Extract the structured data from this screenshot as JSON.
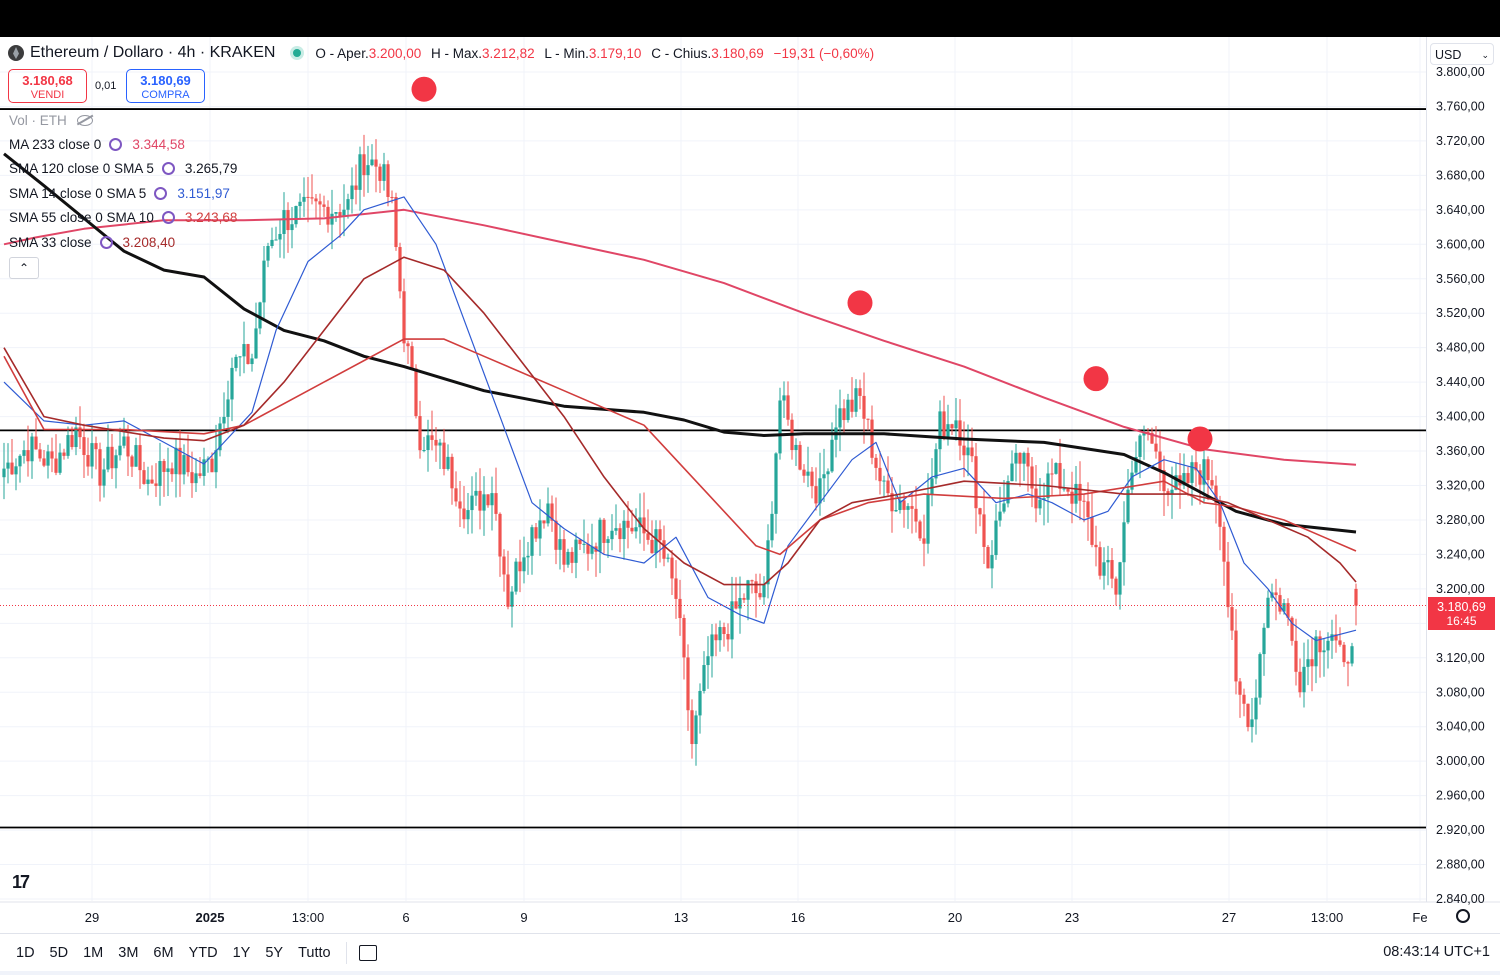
{
  "header": {
    "title": "Ethereum / Dollaro · 4h · KRAKEN",
    "open_label": "O - Aper.",
    "open": "3.200,00",
    "high_label": "H - Max.",
    "high": "3.212,82",
    "low_label": "L - Min.",
    "low": "3.179,10",
    "close_label": "C - Chius.",
    "close": "3.180,69",
    "change": "−19,31 (−0,60%)"
  },
  "trade": {
    "sell_price": "3.180,68",
    "sell_label": "VENDI",
    "spread": "0,01",
    "buy_price": "3.180,69",
    "buy_label": "COMPRA"
  },
  "volume": {
    "label": "Vol · ETH"
  },
  "indicators": [
    {
      "name": "MA 233 close 0",
      "value": "3.344,58",
      "color": "#e04666"
    },
    {
      "name": "SMA 120 close 0 SMA 5",
      "value": "3.265,79",
      "color": "#131722"
    },
    {
      "name": "SMA 14 close 0 SMA 5",
      "value": "3.151,97",
      "color": "#2f5bd3"
    },
    {
      "name": "SMA 55 close 0 SMA 10",
      "value": "3.243,68",
      "color": "#d13d3d"
    },
    {
      "name": "SMA 33 close",
      "value": "3.208,40",
      "color": "#a52a2a"
    }
  ],
  "currency": "USD",
  "last_price": {
    "value": "3.180,69",
    "countdown": "16:45"
  },
  "time_axis": [
    "29",
    "2025",
    "13:00",
    "6",
    "9",
    "13",
    "16",
    "20",
    "23",
    "27",
    "13:00",
    "Fe"
  ],
  "range_buttons": [
    "1D",
    "5D",
    "1M",
    "3M",
    "6M",
    "YTD",
    "1Y",
    "5Y",
    "Tutto"
  ],
  "clock": "08:43:14 UTC+1",
  "colors": {
    "up": "#26a69a",
    "down": "#ef5350",
    "marker": "#f23645"
  },
  "chart_data": {
    "type": "candlestick",
    "symbol": "ETH/USD",
    "interval": "4h",
    "ylim": [
      2840,
      3800
    ],
    "yticks": [
      "3.800,00",
      "3.760,00",
      "3.720,00",
      "3.680,00",
      "3.640,00",
      "3.600,00",
      "3.560,00",
      "3.520,00",
      "3.480,00",
      "3.440,00",
      "3.400,00",
      "3.360,00",
      "3.320,00",
      "3.280,00",
      "3.240,00",
      "3.200,00",
      "3.160,00",
      "3.120,00",
      "3.080,00",
      "3.040,00",
      "3.000,00",
      "2.960,00",
      "2.920,00",
      "2.880,00",
      "2.840,00"
    ],
    "horizontal_lines": [
      3757,
      3384,
      2923
    ],
    "close_anchors": [
      [
        0,
        3340
      ],
      [
        6,
        3365
      ],
      [
        12,
        3345
      ],
      [
        18,
        3385
      ],
      [
        24,
        3335
      ],
      [
        30,
        3370
      ],
      [
        36,
        3325
      ],
      [
        42,
        3350
      ],
      [
        48,
        3330
      ],
      [
        52,
        3350
      ],
      [
        57,
        3460
      ],
      [
        62,
        3470
      ],
      [
        66,
        3600
      ],
      [
        70,
        3630
      ],
      [
        78,
        3640
      ],
      [
        86,
        3645
      ],
      [
        90,
        3700
      ],
      [
        94,
        3690
      ],
      [
        97,
        3640
      ],
      [
        100,
        3500
      ],
      [
        104,
        3380
      ],
      [
        110,
        3350
      ],
      [
        116,
        3290
      ],
      [
        122,
        3320
      ],
      [
        126,
        3190
      ],
      [
        130,
        3250
      ],
      [
        136,
        3300
      ],
      [
        140,
        3230
      ],
      [
        146,
        3250
      ],
      [
        152,
        3280
      ],
      [
        158,
        3270
      ],
      [
        164,
        3250
      ],
      [
        168,
        3190
      ],
      [
        172,
        3020
      ],
      [
        176,
        3120
      ],
      [
        180,
        3150
      ],
      [
        186,
        3200
      ],
      [
        190,
        3190
      ],
      [
        194,
        3420
      ],
      [
        198,
        3360
      ],
      [
        204,
        3310
      ],
      [
        208,
        3400
      ],
      [
        214,
        3420
      ],
      [
        220,
        3310
      ],
      [
        226,
        3300
      ],
      [
        230,
        3270
      ],
      [
        234,
        3390
      ],
      [
        238,
        3400
      ],
      [
        242,
        3340
      ],
      [
        246,
        3230
      ],
      [
        250,
        3310
      ],
      [
        254,
        3350
      ],
      [
        258,
        3310
      ],
      [
        262,
        3330
      ],
      [
        266,
        3320
      ],
      [
        270,
        3290
      ],
      [
        274,
        3230
      ],
      [
        278,
        3200
      ],
      [
        282,
        3350
      ],
      [
        286,
        3380
      ],
      [
        290,
        3330
      ],
      [
        294,
        3310
      ],
      [
        298,
        3340
      ],
      [
        302,
        3330
      ],
      [
        304,
        3290
      ],
      [
        308,
        3080
      ],
      [
        312,
        3050
      ],
      [
        316,
        3200
      ],
      [
        320,
        3180
      ],
      [
        324,
        3100
      ],
      [
        328,
        3140
      ],
      [
        332,
        3150
      ],
      [
        335,
        3100
      ],
      [
        338,
        3180
      ]
    ],
    "overlays": {
      "MA 233": [
        [
          0,
          3600
        ],
        [
          8,
          3608
        ],
        [
          20,
          3618
        ],
        [
          40,
          3628
        ],
        [
          60,
          3628
        ],
        [
          80,
          3630
        ],
        [
          100,
          3640
        ],
        [
          120,
          3622
        ],
        [
          140,
          3602
        ],
        [
          160,
          3582
        ],
        [
          180,
          3555
        ],
        [
          200,
          3520
        ],
        [
          220,
          3488
        ],
        [
          240,
          3458
        ],
        [
          260,
          3422
        ],
        [
          280,
          3388
        ],
        [
          300,
          3362
        ],
        [
          320,
          3350
        ],
        [
          338,
          3344
        ]
      ],
      "SMA 120": [
        [
          0,
          3705
        ],
        [
          10,
          3668
        ],
        [
          20,
          3630
        ],
        [
          30,
          3592
        ],
        [
          40,
          3570
        ],
        [
          50,
          3562
        ],
        [
          60,
          3525
        ],
        [
          70,
          3500
        ],
        [
          80,
          3488
        ],
        [
          90,
          3470
        ],
        [
          100,
          3458
        ],
        [
          120,
          3430
        ],
        [
          140,
          3412
        ],
        [
          160,
          3405
        ],
        [
          170,
          3396
        ],
        [
          180,
          3382
        ],
        [
          190,
          3378
        ],
        [
          200,
          3380
        ],
        [
          220,
          3380
        ],
        [
          240,
          3374
        ],
        [
          260,
          3370
        ],
        [
          280,
          3356
        ],
        [
          290,
          3335
        ],
        [
          300,
          3310
        ],
        [
          308,
          3290
        ],
        [
          320,
          3275
        ],
        [
          338,
          3266
        ]
      ],
      "SMA 14": [
        [
          0,
          3440
        ],
        [
          10,
          3395
        ],
        [
          20,
          3390
        ],
        [
          30,
          3395
        ],
        [
          40,
          3370
        ],
        [
          50,
          3345
        ],
        [
          55,
          3370
        ],
        [
          62,
          3405
        ],
        [
          68,
          3500
        ],
        [
          76,
          3580
        ],
        [
          84,
          3610
        ],
        [
          90,
          3640
        ],
        [
          100,
          3655
        ],
        [
          108,
          3600
        ],
        [
          116,
          3500
        ],
        [
          124,
          3400
        ],
        [
          132,
          3300
        ],
        [
          140,
          3270
        ],
        [
          150,
          3240
        ],
        [
          160,
          3230
        ],
        [
          168,
          3260
        ],
        [
          176,
          3190
        ],
        [
          184,
          3170
        ],
        [
          190,
          3160
        ],
        [
          196,
          3250
        ],
        [
          204,
          3300
        ],
        [
          212,
          3350
        ],
        [
          218,
          3370
        ],
        [
          224,
          3300
        ],
        [
          232,
          3330
        ],
        [
          240,
          3340
        ],
        [
          248,
          3300
        ],
        [
          256,
          3310
        ],
        [
          262,
          3300
        ],
        [
          270,
          3280
        ],
        [
          276,
          3290
        ],
        [
          282,
          3330
        ],
        [
          290,
          3350
        ],
        [
          298,
          3340
        ],
        [
          304,
          3300
        ],
        [
          310,
          3230
        ],
        [
          316,
          3200
        ],
        [
          322,
          3160
        ],
        [
          328,
          3140
        ],
        [
          338,
          3152
        ]
      ],
      "SMA 55": [
        [
          0,
          3470
        ],
        [
          10,
          3385
        ],
        [
          30,
          3385
        ],
        [
          50,
          3380
        ],
        [
          60,
          3390
        ],
        [
          80,
          3440
        ],
        [
          100,
          3490
        ],
        [
          110,
          3490
        ],
        [
          120,
          3470
        ],
        [
          140,
          3430
        ],
        [
          160,
          3390
        ],
        [
          176,
          3310
        ],
        [
          188,
          3250
        ],
        [
          194,
          3240
        ],
        [
          204,
          3280
        ],
        [
          216,
          3300
        ],
        [
          230,
          3310
        ],
        [
          250,
          3305
        ],
        [
          270,
          3310
        ],
        [
          290,
          3325
        ],
        [
          300,
          3300
        ],
        [
          308,
          3295
        ],
        [
          320,
          3280
        ],
        [
          330,
          3260
        ],
        [
          338,
          3244
        ]
      ],
      "SMA 33": [
        [
          0,
          3480
        ],
        [
          10,
          3400
        ],
        [
          20,
          3390
        ],
        [
          40,
          3375
        ],
        [
          50,
          3372
        ],
        [
          60,
          3390
        ],
        [
          70,
          3440
        ],
        [
          80,
          3500
        ],
        [
          90,
          3560
        ],
        [
          100,
          3585
        ],
        [
          110,
          3570
        ],
        [
          120,
          3520
        ],
        [
          130,
          3460
        ],
        [
          140,
          3400
        ],
        [
          150,
          3330
        ],
        [
          160,
          3270
        ],
        [
          170,
          3230
        ],
        [
          180,
          3205
        ],
        [
          190,
          3205
        ],
        [
          196,
          3230
        ],
        [
          204,
          3280
        ],
        [
          212,
          3300
        ],
        [
          224,
          3310
        ],
        [
          240,
          3325
        ],
        [
          260,
          3320
        ],
        [
          280,
          3310
        ],
        [
          296,
          3310
        ],
        [
          306,
          3300
        ],
        [
          316,
          3280
        ],
        [
          326,
          3260
        ],
        [
          334,
          3230
        ],
        [
          338,
          3208
        ]
      ]
    },
    "markers": [
      [
        105,
        3780
      ],
      [
        214,
        3532
      ],
      [
        273,
        3444
      ],
      [
        299,
        3374
      ]
    ]
  }
}
